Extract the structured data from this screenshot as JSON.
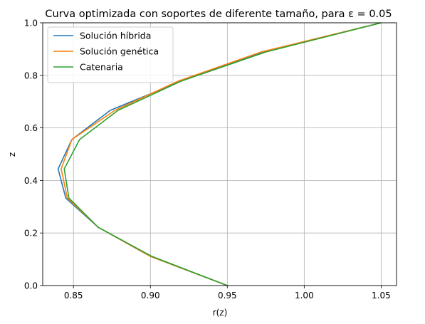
{
  "chart_data": {
    "type": "line",
    "title": "Curva optimizada con soportes de diferente tamaño, para ε = 0.05",
    "xlabel": "r(z)",
    "ylabel": "z",
    "xlim": [
      0.83,
      1.06
    ],
    "ylim": [
      0.0,
      1.0
    ],
    "xticks": [
      0.85,
      0.9,
      0.95,
      1.0,
      1.05
    ],
    "xtick_labels": [
      "0.85",
      "0.90",
      "0.95",
      "1.00",
      "1.05"
    ],
    "yticks": [
      0.0,
      0.2,
      0.4,
      0.6,
      0.8,
      1.0
    ],
    "ytick_labels": [
      "0.0",
      "0.2",
      "0.4",
      "0.6",
      "0.8",
      "1.0"
    ],
    "grid": true,
    "legend_position": "top-left",
    "series": [
      {
        "name": "Solución híbrida",
        "color": "#1f77b4",
        "points": [
          [
            0.95,
            0.0
          ],
          [
            0.9,
            0.111
          ],
          [
            0.866,
            0.222
          ],
          [
            0.845,
            0.333
          ],
          [
            0.84,
            0.444
          ],
          [
            0.849,
            0.556
          ],
          [
            0.874,
            0.667
          ],
          [
            0.92,
            0.778
          ],
          [
            0.973,
            0.889
          ],
          [
            1.05,
            1.0
          ]
        ]
      },
      {
        "name": "Solución genética",
        "color": "#ff7f0e",
        "points": [
          [
            0.95,
            0.0
          ],
          [
            0.9,
            0.111
          ],
          [
            0.866,
            0.222
          ],
          [
            0.846,
            0.333
          ],
          [
            0.842,
            0.444
          ],
          [
            0.849,
            0.556
          ],
          [
            0.877,
            0.667
          ],
          [
            0.918,
            0.778
          ],
          [
            0.972,
            0.889
          ],
          [
            1.05,
            1.0
          ]
        ]
      },
      {
        "name": "Catenaria",
        "color": "#2ca02c",
        "points": [
          [
            0.95,
            0.0
          ],
          [
            0.901,
            0.111
          ],
          [
            0.866,
            0.222
          ],
          [
            0.847,
            0.333
          ],
          [
            0.844,
            0.444
          ],
          [
            0.854,
            0.556
          ],
          [
            0.879,
            0.667
          ],
          [
            0.92,
            0.778
          ],
          [
            0.975,
            0.889
          ],
          [
            1.05,
            1.0
          ]
        ]
      }
    ]
  }
}
